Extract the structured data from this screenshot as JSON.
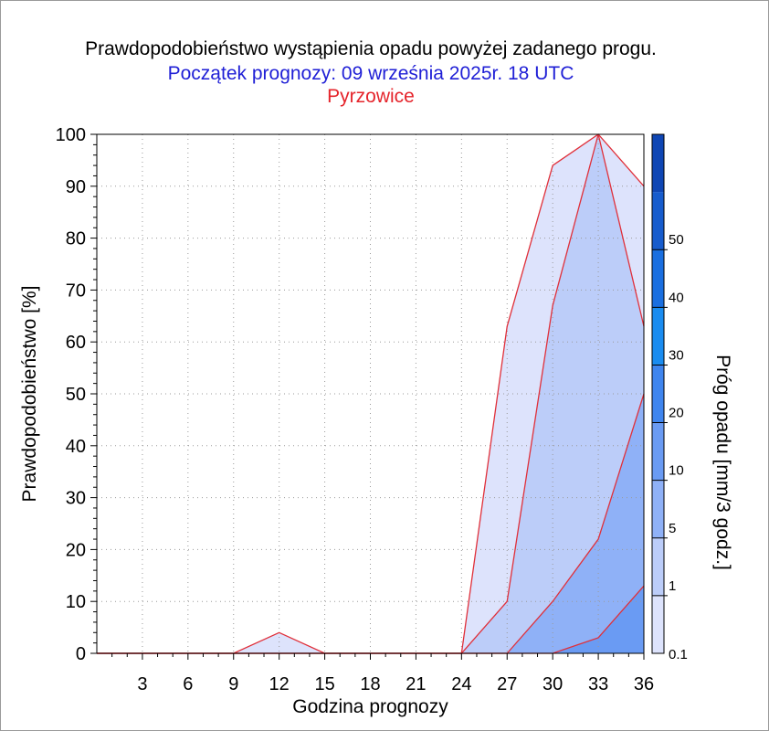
{
  "chart_data": {
    "type": "area",
    "title": "Prawdopodobieństwo wystąpienia opadu powyżej zadanego progu.",
    "subtitle": "Początek prognozy: 09 września 2025r. 18 UTC",
    "location": "Pyrzowice",
    "xlabel": "Godzina prognozy",
    "ylabel": "Prawdopodobieństwo [%]",
    "colorbar_label": "Próg opadu [mm/3 godz.]",
    "xlim": [
      0,
      36
    ],
    "ylim": [
      0,
      100
    ],
    "x_ticks": [
      3,
      6,
      9,
      12,
      15,
      18,
      21,
      24,
      27,
      30,
      33,
      36
    ],
    "y_ticks": [
      0,
      10,
      20,
      30,
      40,
      50,
      60,
      70,
      80,
      90,
      100
    ],
    "grid": true,
    "x": [
      0,
      3,
      6,
      9,
      12,
      15,
      18,
      21,
      24,
      27,
      30,
      33,
      36
    ],
    "series": [
      {
        "threshold": "0.1",
        "color": "#dde3fc",
        "values": [
          0,
          0,
          0,
          0,
          4,
          0,
          0,
          0,
          0,
          63,
          94,
          100,
          90
        ]
      },
      {
        "threshold": "1",
        "color": "#bccdf9",
        "values": [
          0,
          0,
          0,
          0,
          0,
          0,
          0,
          0,
          0,
          10,
          67,
          100,
          63
        ]
      },
      {
        "threshold": "5",
        "color": "#8fb1f7",
        "values": [
          0,
          0,
          0,
          0,
          0,
          0,
          0,
          0,
          0,
          0,
          10,
          22,
          50
        ]
      },
      {
        "threshold": "10",
        "color": "#6a9bf3",
        "values": [
          0,
          0,
          0,
          0,
          0,
          0,
          0,
          0,
          0,
          0,
          0,
          3,
          13
        ]
      }
    ],
    "colorbar": {
      "tick_labels": [
        "0.1",
        "1",
        "5",
        "10",
        "20",
        "30",
        "40",
        "50"
      ],
      "colors": [
        "#dde3fc",
        "#bccdf9",
        "#8fb1f7",
        "#6a9bf3",
        "#3f85ee",
        "#1a8cf0",
        "#1a6fe0",
        "#175ccd",
        "#0f46b4"
      ]
    },
    "line_color": "#e0303a"
  }
}
